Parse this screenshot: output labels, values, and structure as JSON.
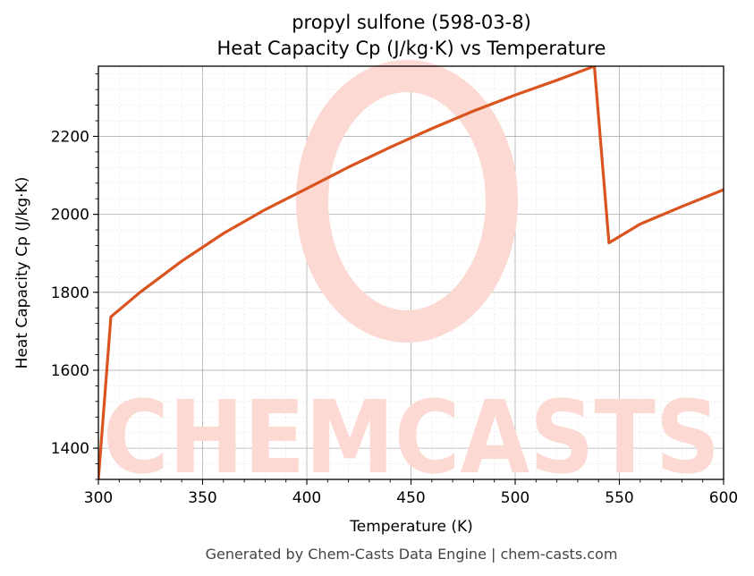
{
  "chart_data": {
    "type": "line",
    "title": "propyl sulfone (598-03-8)",
    "subtitle": "Heat Capacity Cp (J/kg·K) vs Temperature",
    "xlabel": "Temperature (K)",
    "ylabel": "Heat Capacity Cp (J/kg·K)",
    "xlim": [
      300,
      600
    ],
    "ylim": [
      1320,
      2380
    ],
    "xticks": [
      300,
      350,
      400,
      450,
      500,
      550,
      600
    ],
    "yticks": [
      1400,
      1600,
      1800,
      2000,
      2200
    ],
    "grid": true,
    "line_color": "#d9541e",
    "series": [
      {
        "x": [
          300,
          306,
          320,
          340,
          360,
          380,
          400,
          420,
          440,
          460,
          480,
          500,
          520,
          538,
          545,
          560,
          580,
          600
        ],
        "y": [
          1320,
          1737,
          1800,
          1880,
          1951,
          2012,
          2066,
          2121,
          2172,
          2220,
          2265,
          2306,
          2344,
          2380,
          1927,
          1975,
          2020,
          2063
        ]
      }
    ]
  },
  "watermark": {
    "text": "CHEMCASTS",
    "color": "#fcd9d2"
  },
  "footer": "Generated by Chem-Casts Data Engine | chem-casts.com"
}
